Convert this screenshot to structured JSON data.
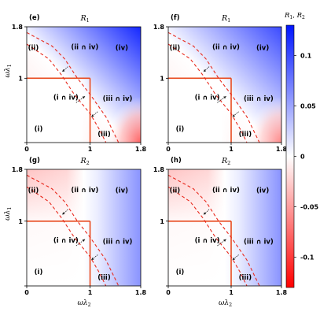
{
  "chart_data": [
    {
      "type": "heatmap",
      "panel_tag": "(e)",
      "title": "R",
      "title_sub": "1",
      "quantity": "R1",
      "xlim": [
        0,
        1.8
      ],
      "ylim": [
        0,
        1.8
      ],
      "xticks": [
        "0",
        "1",
        "1.8"
      ],
      "yticks": [
        "",
        "1",
        "1.8"
      ],
      "xlabel": "",
      "ylabel": "ωλ1",
      "regions": [
        "(i)",
        "(ii)",
        "(iii)",
        "(iv)",
        "(i ∩ iv)",
        "(ii ∩ iv)",
        "(iii ∩ iv)"
      ],
      "values": [
        {
          "x": 0.0,
          "y": 1.8,
          "value": 0.06
        },
        {
          "x": 1.8,
          "y": 1.8,
          "value": 0.12
        },
        {
          "x": 0.0,
          "y": 0.0,
          "value": 0.0
        },
        {
          "x": 1.8,
          "y": 0.0,
          "value": -0.08
        },
        {
          "x": 1.0,
          "y": 1.0,
          "value": 0.0
        }
      ]
    },
    {
      "type": "heatmap",
      "panel_tag": "(f)",
      "title": "R",
      "title_sub": "1",
      "quantity": "R1",
      "xlim": [
        0,
        1.8
      ],
      "ylim": [
        0,
        1.8
      ],
      "xticks": [
        "0",
        "1",
        "1.8"
      ],
      "yticks": [
        "",
        "1",
        "1.8"
      ],
      "xlabel": "",
      "ylabel": "",
      "regions": [
        "(i)",
        "(ii)",
        "(iii)",
        "(iv)",
        "(i ∩ iv)",
        "(ii ∩ iv)",
        "(iii ∩ iv)"
      ],
      "values": [
        {
          "x": 0.0,
          "y": 1.8,
          "value": 0.05
        },
        {
          "x": 1.8,
          "y": 1.8,
          "value": 0.1
        },
        {
          "x": 0.0,
          "y": 0.0,
          "value": 0.0
        },
        {
          "x": 1.8,
          "y": 0.0,
          "value": -0.06
        },
        {
          "x": 1.0,
          "y": 1.0,
          "value": 0.0
        }
      ]
    },
    {
      "type": "heatmap",
      "panel_tag": "(g)",
      "title": "R",
      "title_sub": "2",
      "quantity": "R2",
      "xlim": [
        0,
        1.8
      ],
      "ylim": [
        0,
        1.8
      ],
      "xticks": [
        "0",
        "1",
        "1.8"
      ],
      "yticks": [
        "",
        "1",
        "1.8"
      ],
      "xlabel": "ωλ2",
      "ylabel": "ωλ1",
      "regions": [
        "(i)",
        "(ii)",
        "(iii)",
        "(iv)",
        "(i ∩ iv)",
        "(ii ∩ iv)",
        "(iii ∩ iv)"
      ],
      "values": [
        {
          "x": 0.0,
          "y": 1.8,
          "value": -0.03
        },
        {
          "x": 0.6,
          "y": 1.8,
          "value": -0.03
        },
        {
          "x": 1.0,
          "y": 1.0,
          "value": 0.0
        },
        {
          "x": 1.8,
          "y": 1.0,
          "value": 0.06
        },
        {
          "x": 0.0,
          "y": 0.0,
          "value": 0.0
        }
      ]
    },
    {
      "type": "heatmap",
      "panel_tag": "(h)",
      "title": "R",
      "title_sub": "2",
      "quantity": "R2",
      "xlim": [
        0,
        1.8
      ],
      "ylim": [
        0,
        1.8
      ],
      "xticks": [
        "0",
        "1",
        "1.8"
      ],
      "yticks": [
        "",
        "1",
        "1.8"
      ],
      "xlabel": "ωλ2",
      "ylabel": "",
      "regions": [
        "(i)",
        "(ii)",
        "(iii)",
        "(iv)",
        "(i ∩ iv)",
        "(ii ∩ iv)",
        "(iii ∩ iv)"
      ],
      "values": [
        {
          "x": 0.0,
          "y": 1.8,
          "value": -0.03
        },
        {
          "x": 0.6,
          "y": 1.8,
          "value": -0.03
        },
        {
          "x": 1.0,
          "y": 1.0,
          "value": 0.0
        },
        {
          "x": 1.8,
          "y": 1.0,
          "value": 0.06
        },
        {
          "x": 0.0,
          "y": 0.0,
          "value": 0.0
        }
      ]
    }
  ],
  "boundaries": {
    "solid_color": "#e8491d",
    "dashed_color": "#e8291d",
    "solid_lines": [
      {
        "from": [
          0,
          1
        ],
        "to": [
          1,
          1
        ]
      },
      {
        "from": [
          1,
          1
        ],
        "to": [
          1,
          0
        ]
      }
    ],
    "dashed_curves": [
      [
        [
          0,
          1.71
        ],
        [
          0.4,
          1.5
        ],
        [
          0.6,
          1.3
        ],
        [
          0.8,
          1.0
        ],
        [
          1.0,
          0.75
        ],
        [
          1.25,
          0.4
        ],
        [
          1.45,
          0.0
        ]
      ],
      [
        [
          0,
          1.53
        ],
        [
          0.35,
          1.3
        ],
        [
          0.55,
          1.05
        ],
        [
          0.75,
          0.75
        ],
        [
          1.0,
          0.45
        ],
        [
          1.15,
          0.2
        ],
        [
          1.25,
          0.0
        ]
      ]
    ]
  },
  "colorbar": {
    "label": "R1, R2",
    "ticks": [
      "0.1",
      "0.05",
      "0",
      "-0.05",
      "-0.1"
    ],
    "range": [
      -0.13,
      0.13
    ],
    "positive_color": "#0015ff",
    "zero_color": "#ffffff",
    "negative_color": "#ff0000"
  }
}
